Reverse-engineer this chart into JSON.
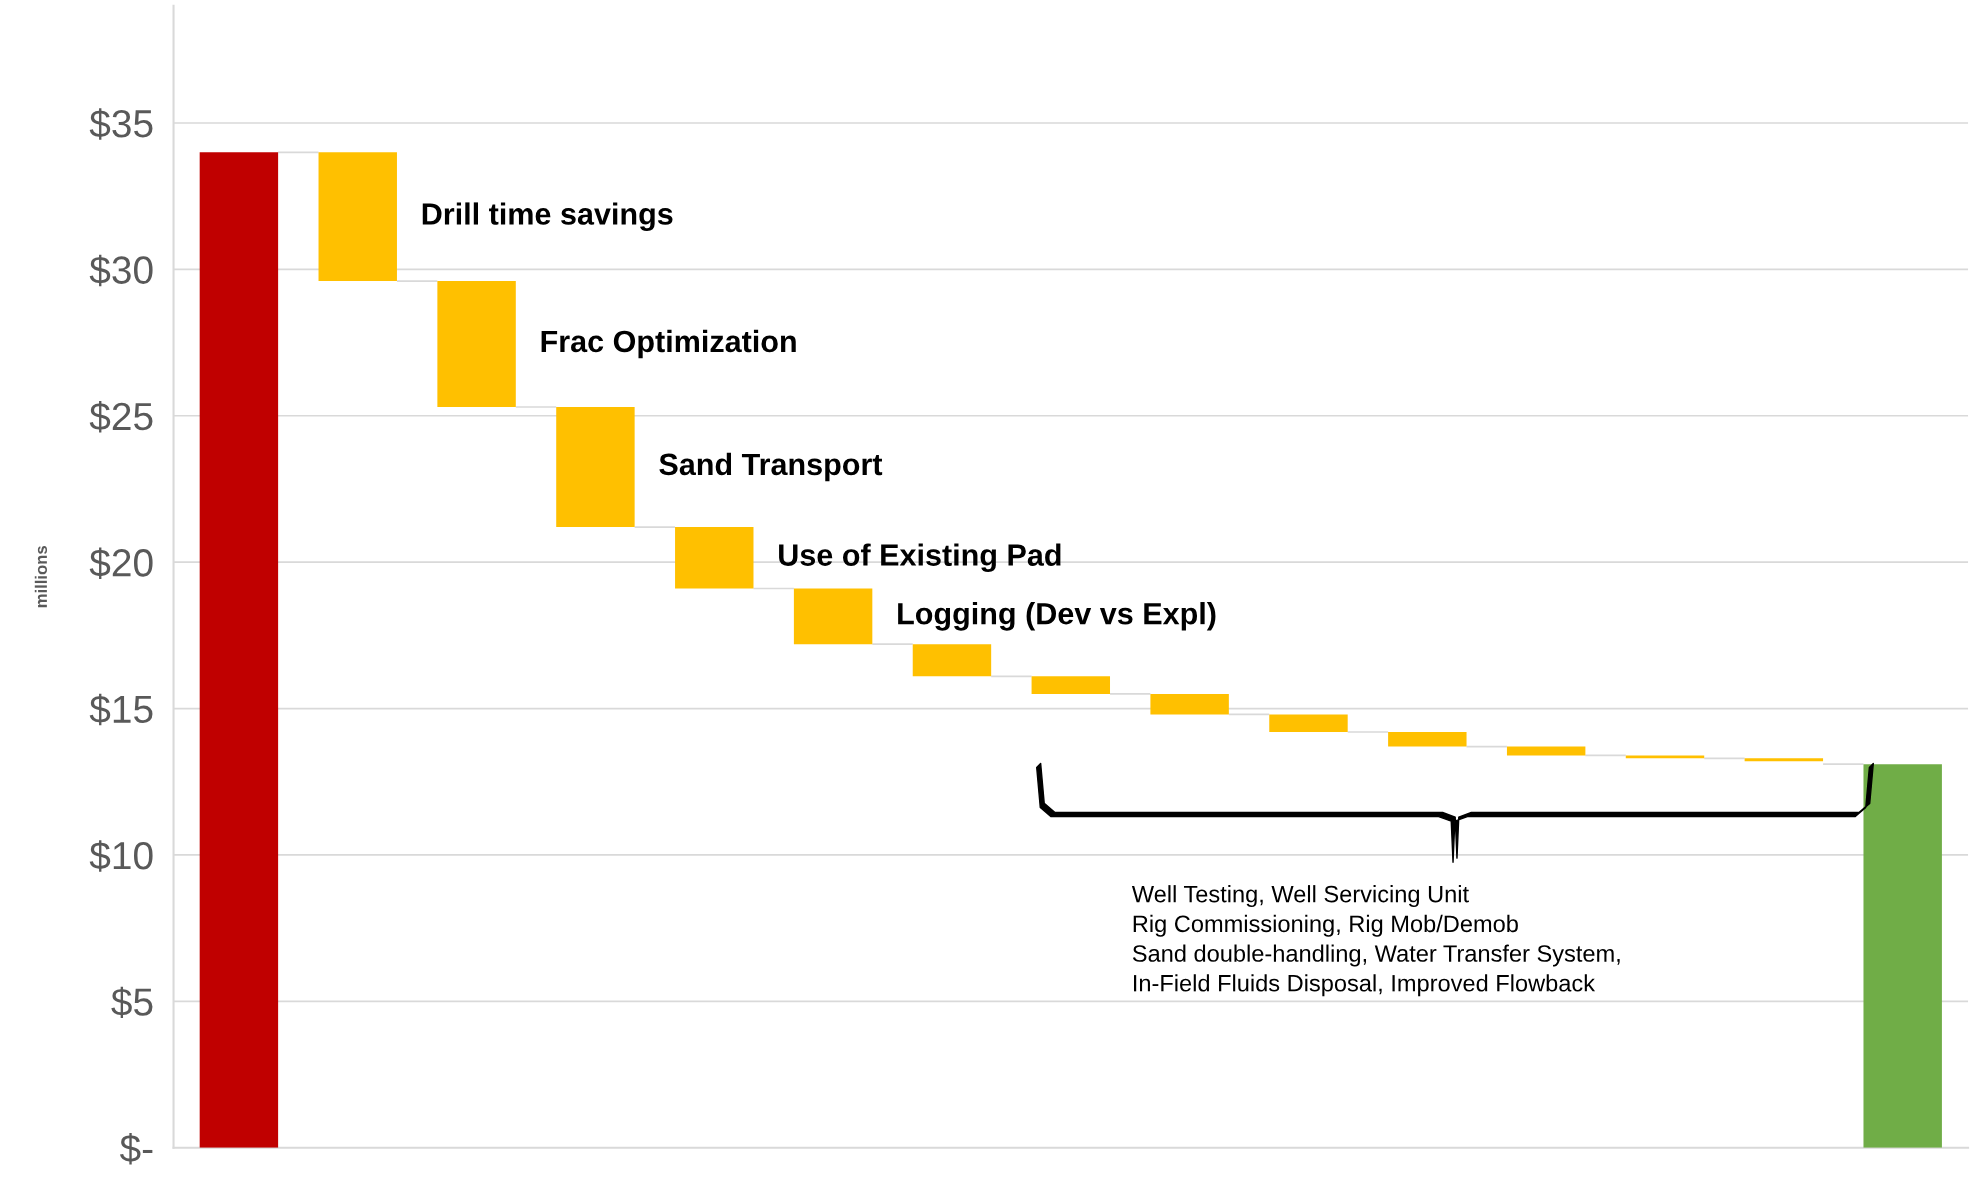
{
  "chart_data": {
    "type": "bar",
    "categories": [
      null,
      null,
      null,
      null,
      null,
      null,
      null,
      null,
      null,
      null,
      null,
      null,
      null,
      null,
      null
    ],
    "values": [
      34.0,
      4.4,
      4.3,
      4.1,
      2.1,
      1.9,
      1.1,
      0.6,
      0.7,
      0.6,
      0.5,
      0.3,
      0.1,
      0.1,
      13.1
    ],
    "base": [
      0,
      29.6,
      25.3,
      21.2,
      19.1,
      17.2,
      16.1,
      15.5,
      14.8,
      14.2,
      13.7,
      13.4,
      13.3,
      13.2,
      0
    ],
    "colors": [
      "#c00000",
      "#ffc000",
      "#ffc000",
      "#ffc000",
      "#ffc000",
      "#ffc000",
      "#ffc000",
      "#ffc000",
      "#ffc000",
      "#ffc000",
      "#ffc000",
      "#ffc000",
      "#ffc000",
      "#ffc000",
      "#70ad47"
    ],
    "ylabel": "millions",
    "ylim": [
      0,
      39
    ],
    "yticks": [
      {
        "value": 0,
        "label": "$-"
      },
      {
        "value": 5,
        "label": "$5"
      },
      {
        "value": 10,
        "label": "$10"
      },
      {
        "value": 15,
        "label": "$15"
      },
      {
        "value": 20,
        "label": "$20"
      },
      {
        "value": 25,
        "label": "$25"
      },
      {
        "value": 30,
        "label": "$30"
      },
      {
        "value": 35,
        "label": "$35"
      }
    ],
    "grid": "y",
    "tick_labels": "y",
    "annotations": [
      "Drill time savings",
      "Frac Optimization",
      "Sand Transport",
      "Use of Existing Pad",
      "Logging (Dev vs Expl)",
      "Well Testing, Well Servicing Unit\nRig Commissioning, Rig Mob/Demob\nSand double-handling, Water Transfer System,\nIn-Field Fluids Disposal, Improved Flowback"
    ]
  }
}
